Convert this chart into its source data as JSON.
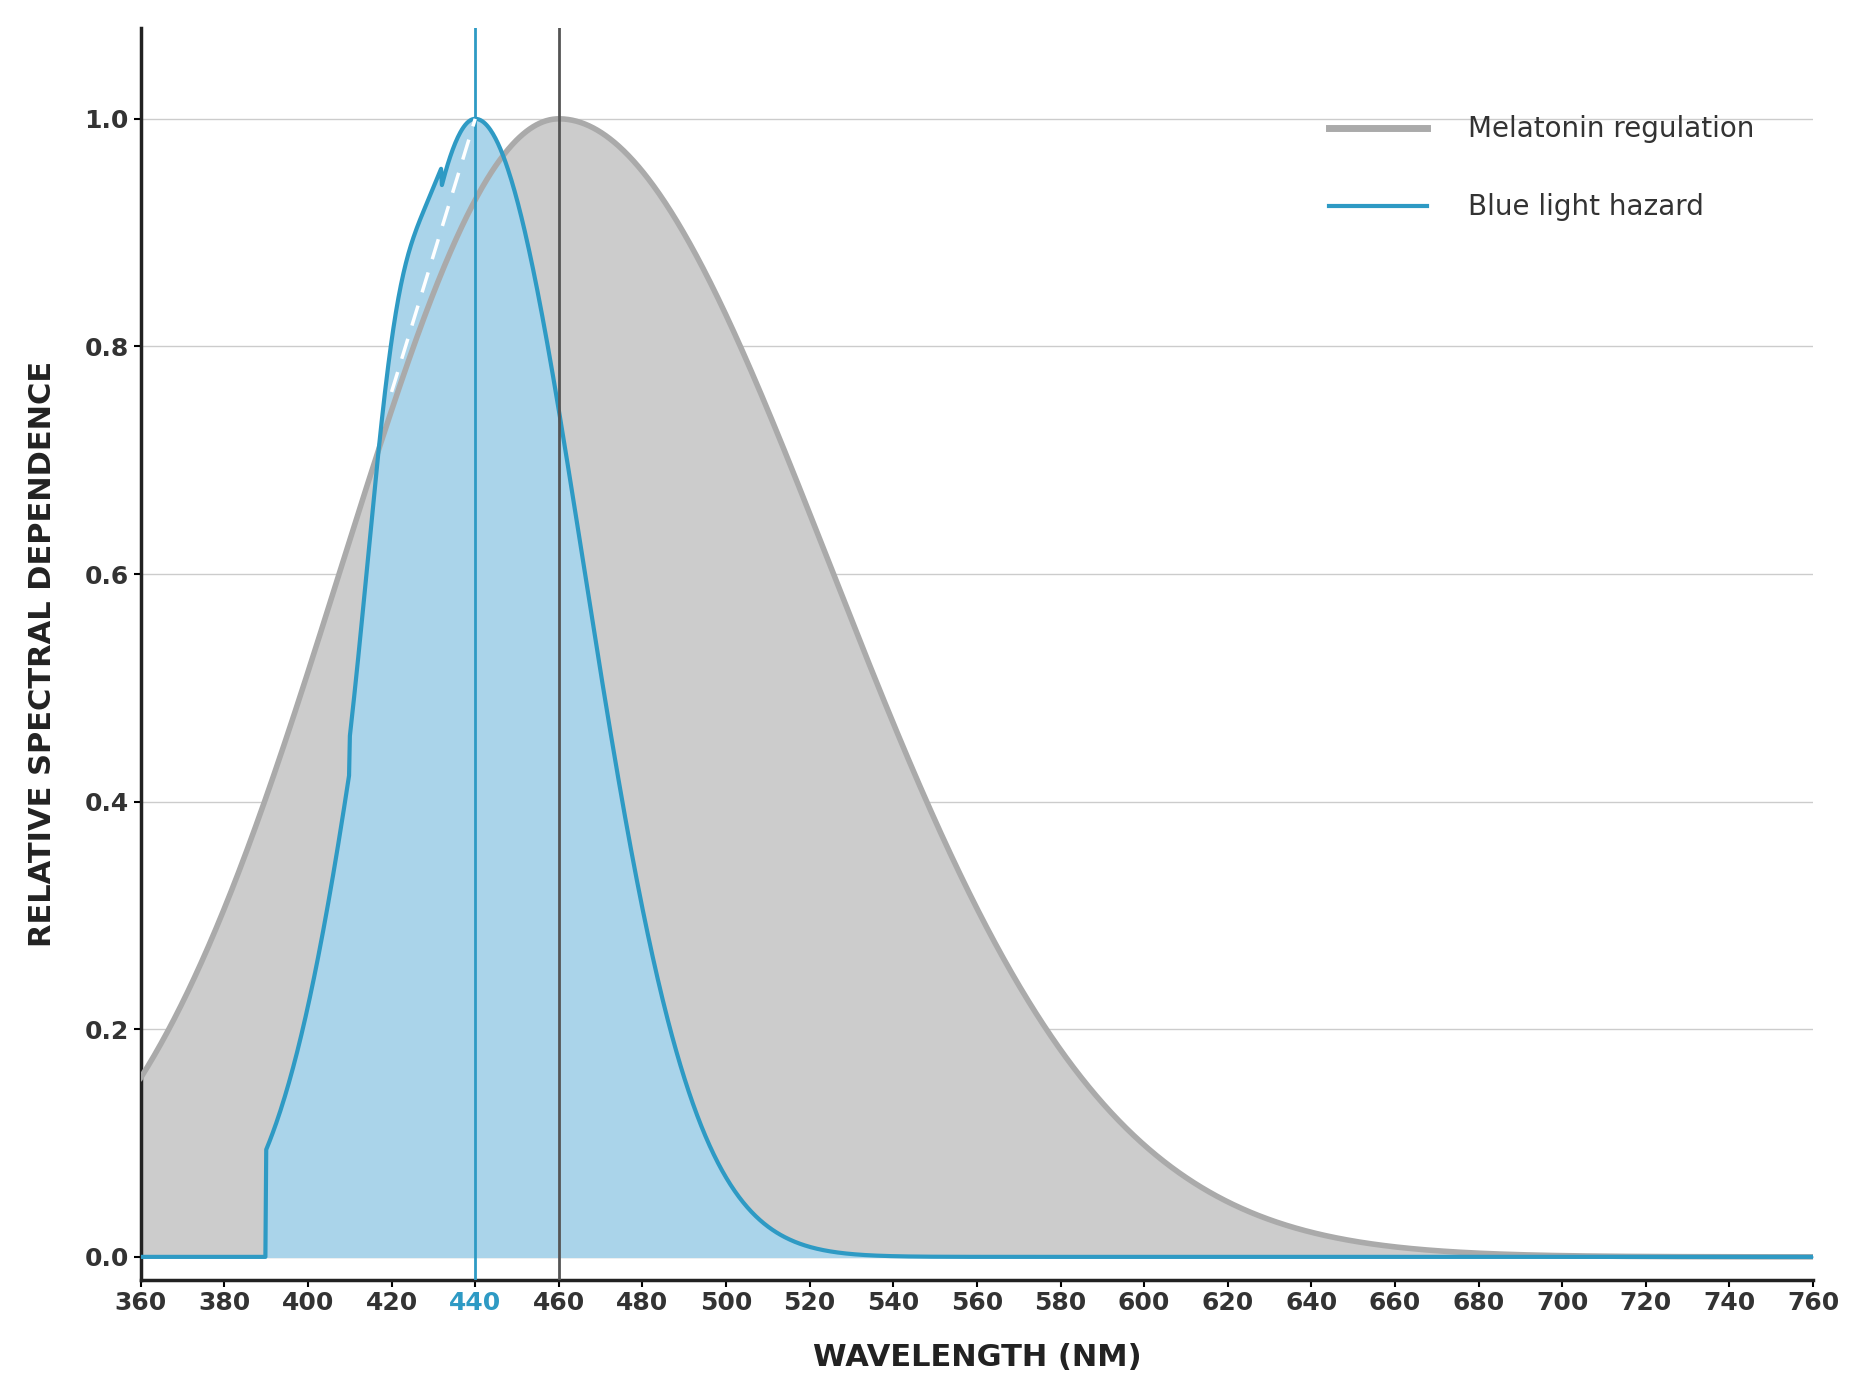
{
  "title": "",
  "xlabel": "WAVELENGTH (NM)",
  "ylabel": "RELATIVE SPECTRAL DEPENDENCE",
  "xlim": [
    360,
    760
  ],
  "ylim": [
    -0.02,
    1.08
  ],
  "xticks": [
    360,
    380,
    400,
    420,
    440,
    460,
    480,
    500,
    520,
    540,
    560,
    580,
    600,
    620,
    640,
    660,
    680,
    700,
    720,
    740,
    760
  ],
  "yticks": [
    0.0,
    0.2,
    0.4,
    0.6,
    0.8,
    1.0
  ],
  "melatonin_color": "#aaaaaa",
  "melatonin_fill": "#cccccc",
  "blue_color": "#2e9ac4",
  "blue_fill": "#aad4ea",
  "vline_blue_color": "#2e9ac4",
  "vline_gray_color": "#555555",
  "vline_440": 440,
  "vline_460": 460,
  "label_melatonin": "Melatonin regulation",
  "label_blue": "Blue light hazard",
  "tick_440_color": "#2e9ac4",
  "background_color": "#ffffff",
  "grid_color": "#cccccc"
}
